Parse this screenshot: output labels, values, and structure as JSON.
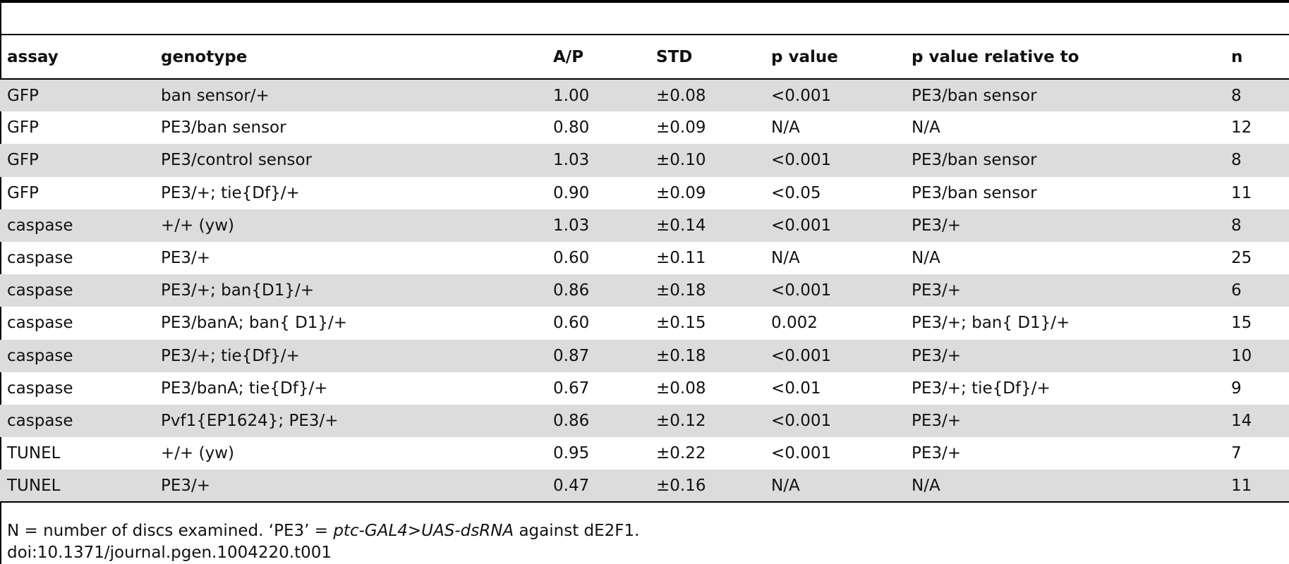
{
  "table": {
    "headers": [
      "assay",
      "genotype",
      "A/P",
      "STD",
      "p value",
      "p value relative to",
      "n"
    ],
    "rows": [
      [
        "GFP",
        "ban sensor/+",
        "1.00",
        "±0.08",
        "<0.001",
        "PE3/ban sensor",
        "8"
      ],
      [
        "GFP",
        "PE3/ban sensor",
        "0.80",
        "±0.09",
        "N/A",
        "N/A",
        "12"
      ],
      [
        "GFP",
        "PE3/control sensor",
        "1.03",
        "±0.10",
        "<0.001",
        "PE3/ban sensor",
        "8"
      ],
      [
        "GFP",
        "PE3/+; tie{Df}/+",
        "0.90",
        "±0.09",
        "<0.05",
        "PE3/ban sensor",
        "11"
      ],
      [
        "caspase",
        "+/+ (yw)",
        "1.03",
        "±0.14",
        "<0.001",
        "PE3/+",
        "8"
      ],
      [
        "caspase",
        "PE3/+",
        "0.60",
        "±0.11",
        "N/A",
        "N/A",
        "25"
      ],
      [
        "caspase",
        "PE3/+; ban{D1}/+",
        "0.86",
        "±0.18",
        "<0.001",
        "PE3/+",
        "6"
      ],
      [
        "caspase",
        "PE3/banA; ban{ D1}/+",
        "0.60",
        "±0.15",
        "0.002",
        "PE3/+; ban{ D1}/+",
        "15"
      ],
      [
        "caspase",
        "PE3/+; tie{Df}/+",
        "0.87",
        "±0.18",
        "<0.001",
        "PE3/+",
        "10"
      ],
      [
        "caspase",
        "PE3/banA; tie{Df}/+",
        "0.67",
        "±0.08",
        "<0.01",
        "PE3/+; tie{Df}/+",
        "9"
      ],
      [
        "caspase",
        "Pvf1{EP1624}; PE3/+",
        "0.86",
        "±0.12",
        "<0.001",
        "PE3/+",
        "14"
      ],
      [
        "TUNEL",
        "+/+ (yw)",
        "0.95",
        "±0.22",
        "<0.001",
        "PE3/+",
        "7"
      ],
      [
        "TUNEL",
        "PE3/+",
        "0.47",
        "±0.16",
        "N/A",
        "N/A",
        "11"
      ]
    ]
  },
  "footnote": {
    "prefix": "N = number of discs examined. ‘PE3’ = ",
    "italic": "ptc-GAL4>UAS-dsRNA",
    "suffix": " against dE2F1."
  },
  "doi": "doi:10.1371/journal.pgen.1004220.t001"
}
